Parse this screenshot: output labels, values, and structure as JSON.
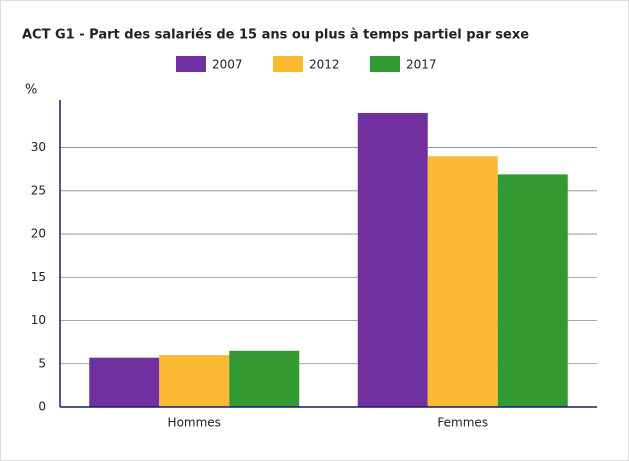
{
  "chart_data": {
    "type": "bar",
    "title": "ACT G1 - Part des salariés de 15 ans ou plus à temps partiel par sexe",
    "y_label": "%",
    "categories": [
      "Hommes",
      "Femmes"
    ],
    "series": [
      {
        "name": "2007",
        "color": "#7030a0",
        "values": [
          5.7,
          34.0
        ]
      },
      {
        "name": "2012",
        "color": "#fdb933",
        "values": [
          6.0,
          29.0
        ]
      },
      {
        "name": "2017",
        "color": "#339933",
        "values": [
          6.5,
          26.9
        ]
      }
    ],
    "ylim": [
      0,
      35.5
    ],
    "yticks": [
      0,
      5,
      10,
      15,
      20,
      25,
      30
    ],
    "grid": true,
    "legend": "top"
  }
}
